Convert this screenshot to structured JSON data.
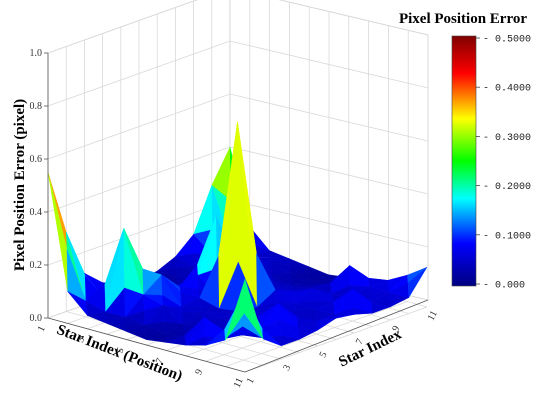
{
  "chart_data": {
    "type": "surface3d",
    "title": "Pixel Position Error",
    "xlabel": "Star Index (Position)",
    "ylabel": "Star Index",
    "zlabel": "Pixel Position Error (pixel)",
    "x": [
      1,
      2,
      3,
      4,
      5,
      6,
      7,
      8,
      9,
      10,
      11
    ],
    "y": [
      1,
      2,
      3,
      4,
      5,
      6,
      7,
      8,
      9,
      10,
      11
    ],
    "x_ticks": [
      "1",
      "3",
      "5",
      "7",
      "9",
      "11"
    ],
    "y_ticks": [
      "1",
      "3",
      "5",
      "7",
      "9",
      "11"
    ],
    "z_ticks": [
      "0.0",
      "0.2",
      "0.4",
      "0.6",
      "0.8",
      "1.0"
    ],
    "zlim": [
      0,
      1.0
    ],
    "z": [
      [
        0.55,
        0.3,
        0.12,
        0.06,
        0.03,
        0.02,
        0.03,
        0.06,
        0.12,
        0.28,
        0.4
      ],
      [
        0.12,
        0.06,
        0.05,
        0.04,
        0.03,
        0.02,
        0.03,
        0.04,
        0.06,
        0.08,
        0.12
      ],
      [
        0.05,
        0.04,
        0.33,
        0.12,
        0.05,
        0.03,
        0.04,
        0.05,
        0.06,
        0.05,
        0.05
      ],
      [
        0.04,
        0.04,
        0.1,
        0.15,
        0.08,
        0.1,
        0.3,
        0.08,
        0.05,
        0.05,
        0.04
      ],
      [
        0.03,
        0.03,
        0.08,
        0.05,
        0.06,
        0.04,
        0.05,
        0.06,
        0.04,
        0.03,
        0.03
      ],
      [
        0.02,
        0.02,
        0.03,
        0.05,
        0.04,
        0.72,
        0.04,
        0.05,
        0.03,
        0.02,
        0.02
      ],
      [
        0.03,
        0.03,
        0.04,
        0.05,
        0.05,
        0.04,
        0.08,
        0.05,
        0.04,
        0.03,
        0.03
      ],
      [
        0.04,
        0.12,
        0.05,
        0.04,
        0.05,
        0.06,
        0.05,
        0.08,
        0.04,
        0.12,
        0.04
      ],
      [
        0.06,
        0.06,
        0.05,
        0.05,
        0.12,
        0.04,
        0.05,
        0.05,
        0.05,
        0.06,
        0.06
      ],
      [
        0.1,
        0.25,
        0.06,
        0.1,
        0.05,
        0.05,
        0.05,
        0.12,
        0.05,
        0.06,
        0.1
      ],
      [
        0.35,
        0.1,
        0.05,
        0.05,
        0.06,
        0.08,
        0.07,
        0.05,
        0.05,
        0.06,
        0.15
      ]
    ],
    "colorbar": {
      "title": "Pixel Position Error",
      "ticks": [
        "0.000",
        "0.1000",
        "0.2000",
        "0.3000",
        "0.4000",
        "0.5000"
      ],
      "range": [
        0,
        0.5
      ],
      "colors": [
        "#000080",
        "#0000ff",
        "#00ffff",
        "#00ff00",
        "#ffff00",
        "#ff0000",
        "#800000"
      ]
    },
    "grid": true
  }
}
